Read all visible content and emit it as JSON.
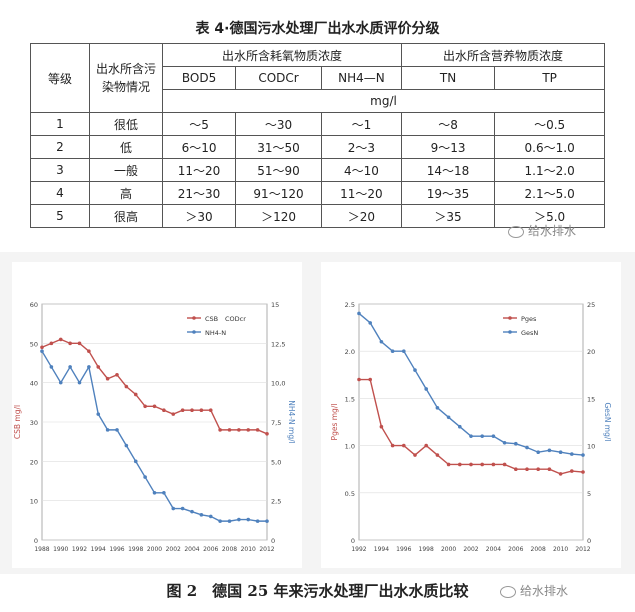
{
  "table": {
    "title": "表 4·德国污水处理厂出水水质评价分级",
    "header": {
      "grade": "等级",
      "pollutant": "出水所含污染物情况",
      "oxygen_group": "出水所含耗氧物质浓度",
      "nutrient_group": "出水所含营养物质浓度",
      "cols": [
        "BOD5",
        "CODCr",
        "NH4—N",
        "TN",
        "TP"
      ],
      "unit": "mg/l"
    },
    "rows": [
      {
        "grade": "1",
        "level": "很低",
        "vals": [
          "～5",
          "～30",
          "～1",
          "～8",
          "～0.5"
        ]
      },
      {
        "grade": "2",
        "level": "低",
        "vals": [
          "6～10",
          "31～50",
          "2～3",
          "9～13",
          "0.6～1.0"
        ]
      },
      {
        "grade": "3",
        "level": "一般",
        "vals": [
          "11～20",
          "51～90",
          "4～10",
          "14～18",
          "1.1～2.0"
        ]
      },
      {
        "grade": "4",
        "level": "高",
        "vals": [
          "21～30",
          "91～120",
          "11～20",
          "19～35",
          "2.1～5.0"
        ]
      },
      {
        "grade": "5",
        "level": "很高",
        "vals": [
          "＞30",
          "＞120",
          "＞20",
          "＞35",
          "＞5.0"
        ]
      }
    ]
  },
  "watermark": "给水排水",
  "caption": "图 2　德国 25 年来污水处理厂出水水质比较",
  "chart_data": [
    {
      "type": "line",
      "xlabel": "",
      "ylabel": "CSB mg/l",
      "y2label": "NH4-N mg/l",
      "x": [
        1988,
        1989,
        1990,
        1991,
        1992,
        1993,
        1994,
        1995,
        1996,
        1997,
        1998,
        1999,
        2000,
        2001,
        2002,
        2003,
        2004,
        2005,
        2006,
        2007,
        2008,
        2009,
        2010,
        2011,
        2012
      ],
      "xticks": [
        "1988",
        "1990",
        "1992",
        "1994",
        "1996",
        "1998",
        "2000",
        "2002",
        "2004",
        "2006",
        "2008",
        "2010",
        "2012"
      ],
      "ylim": [
        0,
        60
      ],
      "yticks": [
        "0",
        "10",
        "20",
        "30",
        "40",
        "50",
        "60"
      ],
      "y2lim": [
        0,
        15
      ],
      "y2ticks": [
        "0",
        "2,5",
        "5,0",
        "7,5",
        "10,0",
        "12,5",
        "15"
      ],
      "legend": "top-right",
      "series": [
        {
          "name": "CSB",
          "name2": "CODcr",
          "color": "#c0504d",
          "axis": "left",
          "values": [
            49,
            50,
            51,
            50,
            50,
            48,
            44,
            41,
            42,
            39,
            37,
            34,
            34,
            33,
            32,
            33,
            33,
            33,
            33,
            28,
            28,
            28,
            28,
            28,
            27
          ]
        },
        {
          "name": "NH4-N",
          "color": "#4f81bd",
          "axis": "right",
          "values": [
            12,
            11,
            10,
            11,
            10,
            11,
            8,
            7,
            7,
            6,
            5,
            4,
            3,
            3,
            2,
            2,
            1.8,
            1.6,
            1.5,
            1.2,
            1.2,
            1.3,
            1.3,
            1.2,
            1.2
          ]
        }
      ]
    },
    {
      "type": "line",
      "xlabel": "",
      "ylabel": "Pges mg/l",
      "y2label": "GesN mg/l",
      "x": [
        1992,
        1993,
        1994,
        1995,
        1996,
        1997,
        1998,
        1999,
        2000,
        2001,
        2002,
        2003,
        2004,
        2005,
        2006,
        2007,
        2008,
        2009,
        2010,
        2011,
        2012
      ],
      "xticks": [
        "1992",
        "1994",
        "1996",
        "1998",
        "2000",
        "2002",
        "2004",
        "2006",
        "2008",
        "2010",
        "2012"
      ],
      "ylim": [
        0,
        2.5
      ],
      "yticks": [
        "0",
        "0.5",
        "1.0",
        "1.5",
        "2.0",
        "2.5"
      ],
      "y2lim": [
        0,
        25
      ],
      "y2ticks": [
        "0",
        "5",
        "10",
        "15",
        "20",
        "25"
      ],
      "legend": "top-right",
      "series": [
        {
          "name": "Pges",
          "color": "#c0504d",
          "axis": "left",
          "values": [
            1.7,
            1.7,
            1.2,
            1.0,
            1.0,
            0.9,
            1.0,
            0.9,
            0.8,
            0.8,
            0.8,
            0.8,
            0.8,
            0.8,
            0.75,
            0.75,
            0.75,
            0.75,
            0.7,
            0.73,
            0.72
          ]
        },
        {
          "name": "GesN",
          "color": "#4f81bd",
          "axis": "right",
          "values": [
            24,
            23,
            21,
            20,
            20,
            18,
            16,
            14,
            13,
            12,
            11,
            11,
            11,
            10.3,
            10.2,
            9.8,
            9.3,
            9.5,
            9.3,
            9.1,
            9.0
          ]
        }
      ]
    }
  ]
}
